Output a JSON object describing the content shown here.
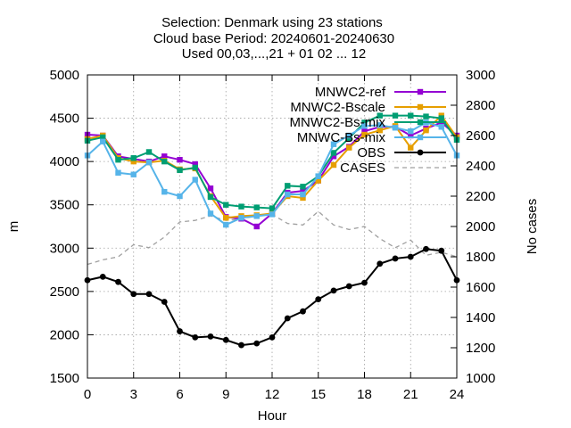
{
  "chart_data": {
    "type": "line",
    "title_lines": [
      "Selection: Denmark using     23 stations",
      "Cloud base   Period: 20240601-20240630",
      "Used 00,03,...,21 + 01 02 ... 12"
    ],
    "xlabel": "Hour",
    "ylabel": "m",
    "y2label": "No cases",
    "xlim": [
      0,
      24
    ],
    "ylim": [
      1500,
      5000
    ],
    "y2lim": [
      1000,
      3000
    ],
    "xticks": [
      "0",
      "3",
      "6",
      "9",
      "12",
      "15",
      "18",
      "21",
      "24"
    ],
    "yticks": [
      "1500",
      "2000",
      "2500",
      "3000",
      "3500",
      "4000",
      "4500",
      "5000"
    ],
    "y2ticks": [
      "1000",
      "1200",
      "1400",
      "1600",
      "1800",
      "2000",
      "2200",
      "2400",
      "2600",
      "2800",
      "3000"
    ],
    "grid": true,
    "legend_position": "top-right",
    "x": [
      0,
      1,
      2,
      3,
      4,
      5,
      6,
      7,
      8,
      9,
      10,
      11,
      12,
      13,
      14,
      15,
      16,
      17,
      18,
      19,
      20,
      21,
      22,
      23,
      24
    ],
    "series": [
      {
        "name": "MNWC2-ref",
        "color": "#9400d3",
        "marker": "square",
        "axis": "left",
        "values": [
          4310,
          4300,
          4060,
          4030,
          4000,
          4060,
          4020,
          3970,
          3690,
          3360,
          3340,
          3250,
          3400,
          3640,
          3660,
          3780,
          4060,
          4170,
          4350,
          4400,
          4400,
          4300,
          4380,
          4450,
          4300
        ]
      },
      {
        "name": "MNWC2-Bscale",
        "color": "#e69f00",
        "marker": "square",
        "axis": "left",
        "values": [
          4260,
          4300,
          4040,
          4000,
          3990,
          4010,
          3910,
          3920,
          3600,
          3350,
          3370,
          3380,
          3400,
          3600,
          3580,
          3780,
          3960,
          4160,
          4310,
          4360,
          4410,
          4160,
          4360,
          4530,
          4280
        ]
      },
      {
        "name": "MNWC2-Bs-mix",
        "color": "#009e73",
        "marker": "square",
        "axis": "left",
        "values": [
          4240,
          4280,
          4020,
          4040,
          4110,
          4000,
          3900,
          3930,
          3590,
          3500,
          3480,
          3470,
          3460,
          3720,
          3710,
          3830,
          4100,
          4270,
          4450,
          4530,
          4530,
          4530,
          4520,
          4500,
          4250
        ]
      },
      {
        "name": "MNWC-Bs-mix",
        "color": "#56b4e9",
        "marker": "square",
        "axis": "left",
        "values": [
          4070,
          4230,
          3870,
          3850,
          3990,
          3650,
          3600,
          3790,
          3400,
          3270,
          3350,
          3370,
          3390,
          3620,
          3620,
          3830,
          4200,
          4300,
          4410,
          4420,
          4390,
          4350,
          4450,
          4400,
          4070
        ]
      },
      {
        "name": "OBS",
        "color": "#000000",
        "marker": "circle",
        "axis": "left",
        "values": [
          2630,
          2670,
          2610,
          2470,
          2470,
          2380,
          2040,
          1970,
          1980,
          1940,
          1880,
          1900,
          1970,
          2190,
          2270,
          2410,
          2510,
          2560,
          2600,
          2820,
          2880,
          2900,
          2990,
          2970,
          2630
        ]
      },
      {
        "name": "CASES",
        "color": "#a0a0a0",
        "marker": "none",
        "dash": true,
        "axis": "right",
        "values": [
          1750,
          1780,
          1800,
          1880,
          1860,
          1930,
          2030,
          2040,
          2070,
          2040,
          2050,
          2070,
          2080,
          2020,
          2010,
          2100,
          2010,
          1980,
          2000,
          1920,
          1860,
          1910,
          1810,
          1830,
          1800
        ]
      }
    ]
  }
}
